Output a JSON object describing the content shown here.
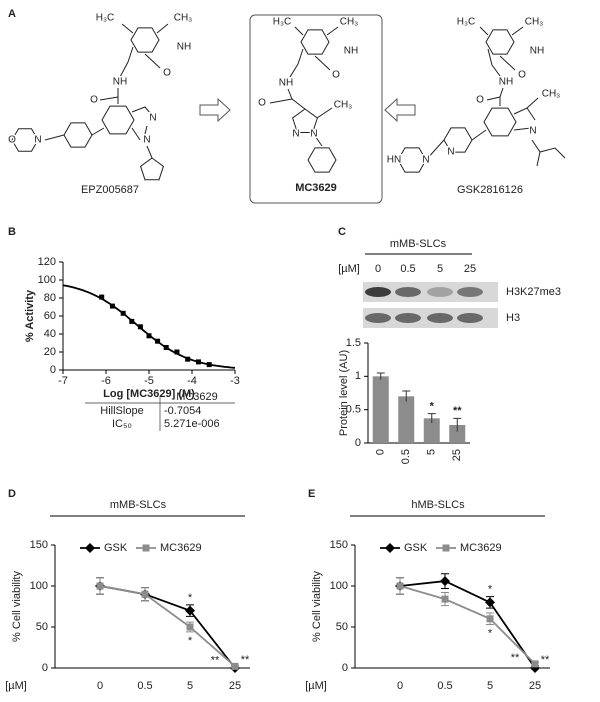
{
  "panel_labels": [
    "A",
    "B",
    "C",
    "D",
    "E"
  ],
  "compounds": [
    {
      "name": "EPZ005687",
      "atoms": [
        "H₃C",
        "CH₃",
        "NH",
        "O",
        "NH",
        "O",
        "N",
        "N",
        "O",
        "N"
      ]
    },
    {
      "name": "MC3629",
      "atoms": [
        "H₃C",
        "CH₃",
        "NH",
        "O",
        "NH",
        "O",
        "CH₃",
        "N",
        "N"
      ]
    },
    {
      "name": "GSK2816126",
      "atoms": [
        "H₃C",
        "CH₃",
        "NH",
        "O",
        "NH",
        "O",
        "CH₃",
        "N",
        "N",
        "N",
        "HN"
      ]
    }
  ],
  "blot": {
    "title": "mMB-SLCs",
    "unit": "[µM]",
    "doses": [
      "0",
      "0.5",
      "5",
      "25"
    ],
    "bands": [
      "H3K27me3",
      "H3"
    ]
  },
  "fit_table": {
    "columns": [
      "MC3629"
    ],
    "rows": [
      [
        "HillSlope",
        "-0.7054"
      ],
      [
        "IC₅₀",
        "5.271e-006"
      ]
    ]
  },
  "chart_data": [
    {
      "type": "scatter",
      "x_label": "Log [MC3629] (M)",
      "y_label": "% Activity",
      "x": [
        -6.1,
        -5.85,
        -5.6,
        -5.4,
        -5.2,
        -5.0,
        -4.8,
        -4.6,
        -4.35,
        -4.1,
        -3.85,
        -3.6
      ],
      "values": [
        81,
        71,
        63,
        54,
        48,
        38,
        32,
        25,
        20,
        12,
        9,
        6
      ],
      "color": "#000000",
      "xlim": [
        -7,
        -3
      ],
      "xticks": [
        -7,
        -6,
        -5,
        -4,
        -3
      ],
      "ylim": [
        0,
        120
      ],
      "yticks": [
        0,
        20,
        40,
        60,
        80,
        100,
        120
      ]
    },
    {
      "type": "bar",
      "y_label": "Protein level (AU)",
      "categories": [
        "0",
        "0.5",
        "5",
        "25"
      ],
      "values": [
        1,
        0.7,
        0.37,
        0.27
      ],
      "errors": [
        0.05,
        0.08,
        0.07,
        0.1
      ],
      "color": "#8c8c8c",
      "ylim": [
        0,
        1.5
      ],
      "yticks": [
        0,
        0.5,
        1,
        1.5
      ],
      "annotations": [
        {
          "x": "5",
          "text": "*"
        },
        {
          "x": "25",
          "text": "**"
        }
      ]
    },
    {
      "type": "line",
      "title": "mMB-SLCs",
      "x_label": "[µM]",
      "y_label": "% Cell viability",
      "categories": [
        "0",
        "0.5",
        "5",
        "25"
      ],
      "series": [
        {
          "name": "GSK",
          "color": "#000000",
          "marker": "diamond",
          "values": [
            100,
            90,
            70,
            0
          ],
          "errors": [
            10,
            8,
            7,
            1
          ]
        },
        {
          "name": "MC3629",
          "color": "#8c8c8c",
          "marker": "square",
          "values": [
            100,
            90,
            50,
            2
          ],
          "errors": [
            10,
            8,
            6,
            1
          ]
        }
      ],
      "ylim": [
        0,
        150
      ],
      "yticks": [
        0,
        50,
        100,
        150
      ],
      "annotations": [
        {
          "series": "GSK",
          "x": "5",
          "text": "*"
        },
        {
          "series": "MC3629",
          "x": "5",
          "text": "*"
        },
        {
          "series": "MC3629",
          "x": "25",
          "text": "**"
        },
        {
          "series": "GSK",
          "x": "25",
          "text": "**"
        }
      ]
    },
    {
      "type": "line",
      "title": "hMB-SLCs",
      "x_label": "[µM]",
      "y_label": "% Cell viability",
      "categories": [
        "0",
        "0.5",
        "5",
        "25"
      ],
      "series": [
        {
          "name": "GSK",
          "color": "#000000",
          "marker": "diamond",
          "values": [
            100,
            106,
            80,
            0
          ],
          "errors": [
            10,
            9,
            7,
            1
          ]
        },
        {
          "name": "MC3629",
          "color": "#8c8c8c",
          "marker": "square",
          "values": [
            100,
            84,
            60,
            5
          ],
          "errors": [
            10,
            8,
            7,
            2
          ]
        }
      ],
      "ylim": [
        0,
        150
      ],
      "yticks": [
        0,
        50,
        100,
        150
      ],
      "annotations": [
        {
          "series": "GSK",
          "x": "5",
          "text": "*"
        },
        {
          "series": "MC3629",
          "x": "5",
          "text": "*"
        },
        {
          "series": "MC3629",
          "x": "25",
          "text": "**"
        },
        {
          "series": "GSK",
          "x": "25",
          "text": "**"
        }
      ]
    }
  ]
}
